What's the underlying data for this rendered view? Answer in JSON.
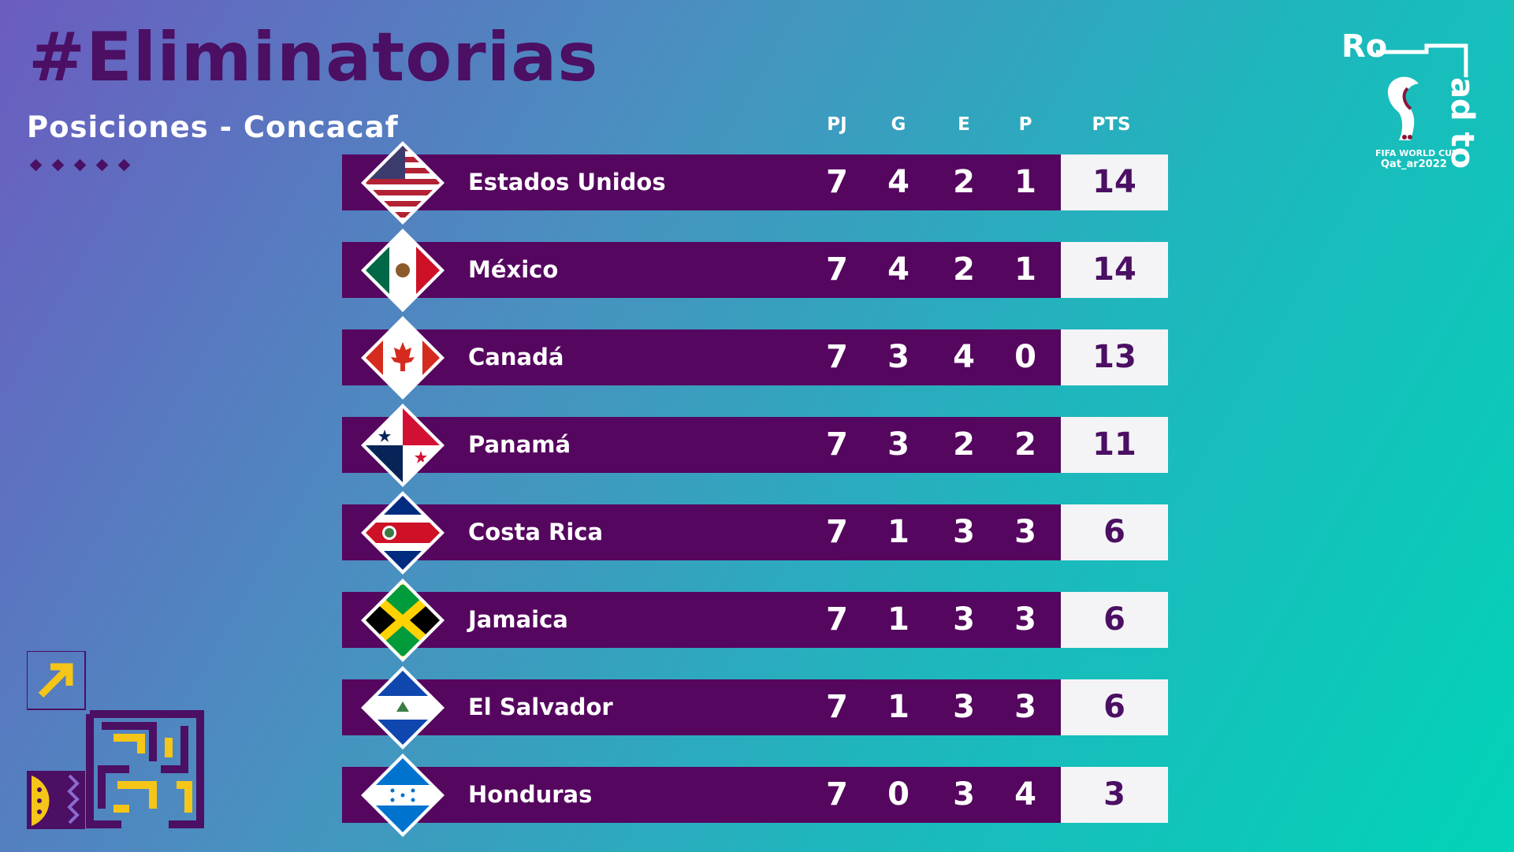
{
  "header": {
    "title": "#Eliminatorias",
    "subtitle": "Posiciones - Concacaf"
  },
  "columns": {
    "pj": "PJ",
    "g": "G",
    "e": "E",
    "p": "P",
    "pts": "PTS"
  },
  "logo": {
    "road_to_a": "Ro",
    "road_to_b": "ad to",
    "fifa_line": "FIFA WORLD CUP",
    "qatar_line": "Qat_ar2022"
  },
  "colors": {
    "purple": "#55065f",
    "title_purple": "#4b0f63",
    "accent_yellow": "#f5c518",
    "pts_bg": "#f4f4f6"
  },
  "standings": [
    {
      "team": "Estados Unidos",
      "flag": "usa-flag",
      "pj": "7",
      "g": "4",
      "e": "2",
      "p": "1",
      "pts": "14"
    },
    {
      "team": "México",
      "flag": "mexico-flag",
      "pj": "7",
      "g": "4",
      "e": "2",
      "p": "1",
      "pts": "14"
    },
    {
      "team": "Canadá",
      "flag": "canada-flag",
      "pj": "7",
      "g": "3",
      "e": "4",
      "p": "0",
      "pts": "13"
    },
    {
      "team": "Panamá",
      "flag": "panama-flag",
      "pj": "7",
      "g": "3",
      "e": "2",
      "p": "2",
      "pts": "11"
    },
    {
      "team": "Costa Rica",
      "flag": "costa-rica-flag",
      "pj": "7",
      "g": "1",
      "e": "3",
      "p": "3",
      "pts": "6"
    },
    {
      "team": "Jamaica",
      "flag": "jamaica-flag",
      "pj": "7",
      "g": "1",
      "e": "3",
      "p": "3",
      "pts": "6"
    },
    {
      "team": "El Salvador",
      "flag": "el-salvador-flag",
      "pj": "7",
      "g": "1",
      "e": "3",
      "p": "3",
      "pts": "6"
    },
    {
      "team": "Honduras",
      "flag": "honduras-flag",
      "pj": "7",
      "g": "0",
      "e": "3",
      "p": "4",
      "pts": "3"
    }
  ]
}
